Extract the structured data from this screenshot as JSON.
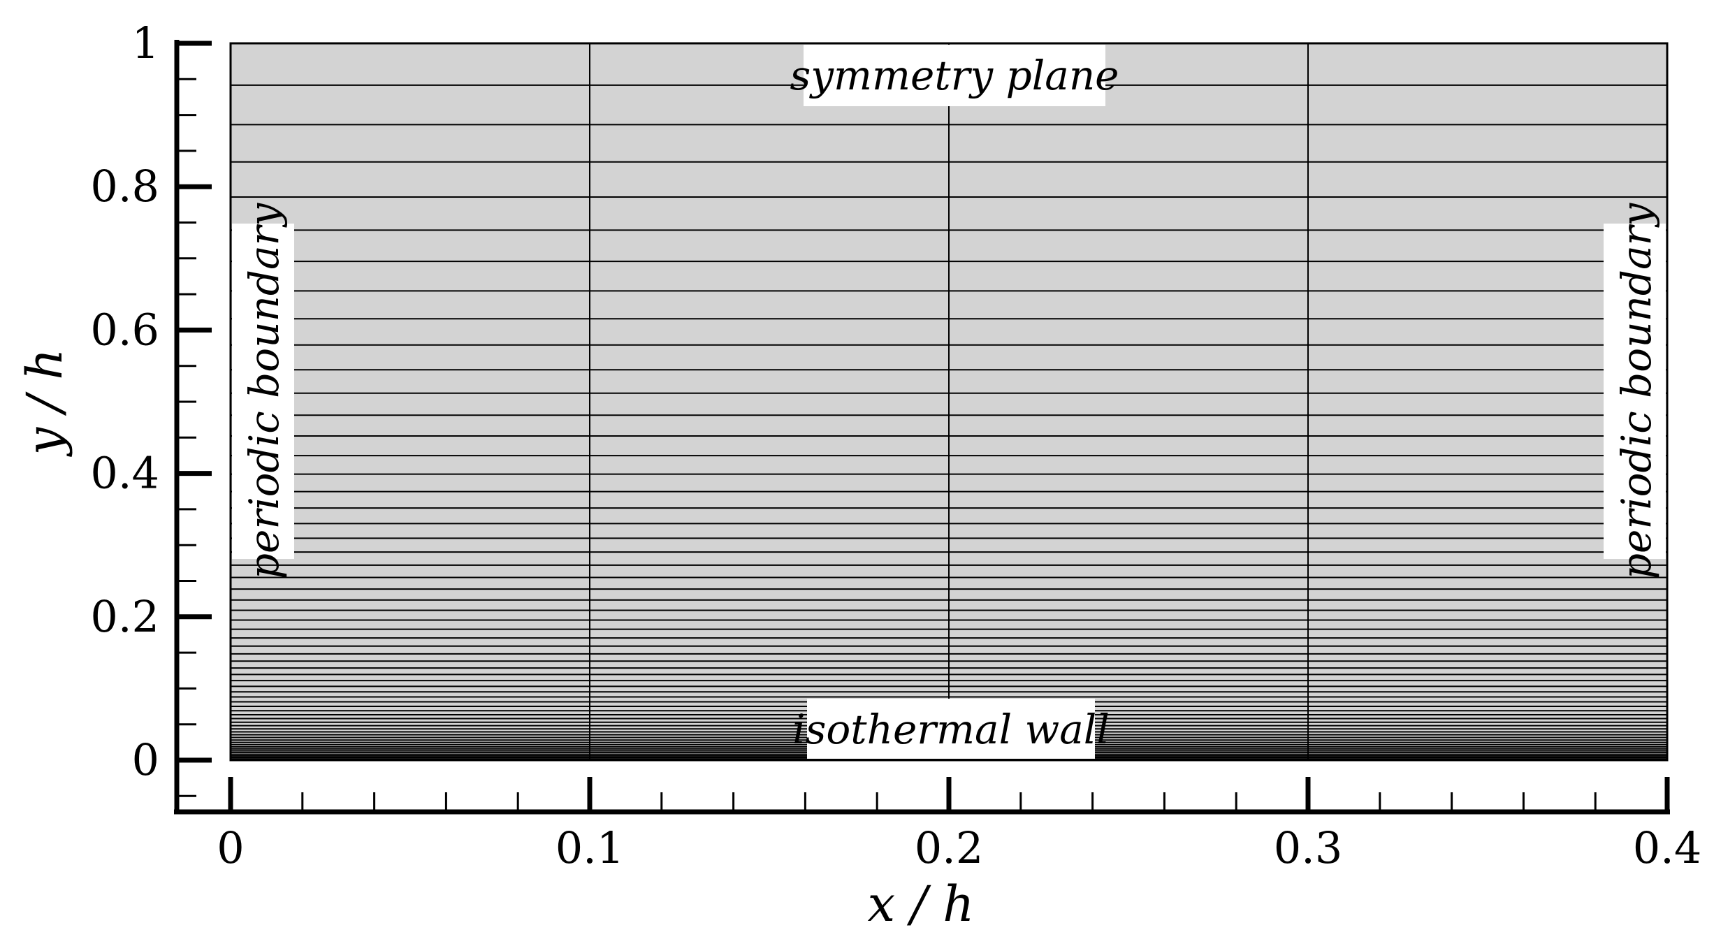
{
  "figure": {
    "x_axis": {
      "title": "x / h",
      "range": [
        0,
        0.4
      ],
      "major_ticks": [
        0,
        0.1,
        0.2,
        0.3,
        0.4
      ],
      "tick_labels": [
        "0",
        "0.1",
        "0.2",
        "0.3",
        "0.4"
      ],
      "minor_step": 0.02
    },
    "y_axis": {
      "title": "y / h",
      "range": [
        0,
        1
      ],
      "major_ticks": [
        0,
        0.2,
        0.4,
        0.6,
        0.8,
        1
      ],
      "tick_labels": [
        "0",
        "0.2",
        "0.4",
        "0.6",
        "0.8",
        "1"
      ],
      "minor_step": 0.05
    },
    "domain": {
      "fill_color": "#d3d3d3",
      "line_color": "#000000"
    },
    "mesh": {
      "vertical_lines_x": [
        0,
        0.1,
        0.2,
        0.3,
        0.4
      ],
      "horizontal_line_count": 60,
      "wall_normal_stretching": "clustered toward y = 0"
    },
    "boundaries": {
      "top": "symmetry plane",
      "bottom": "isothermal wall",
      "left": "periodic boundary",
      "right": "periodic boundary"
    }
  }
}
